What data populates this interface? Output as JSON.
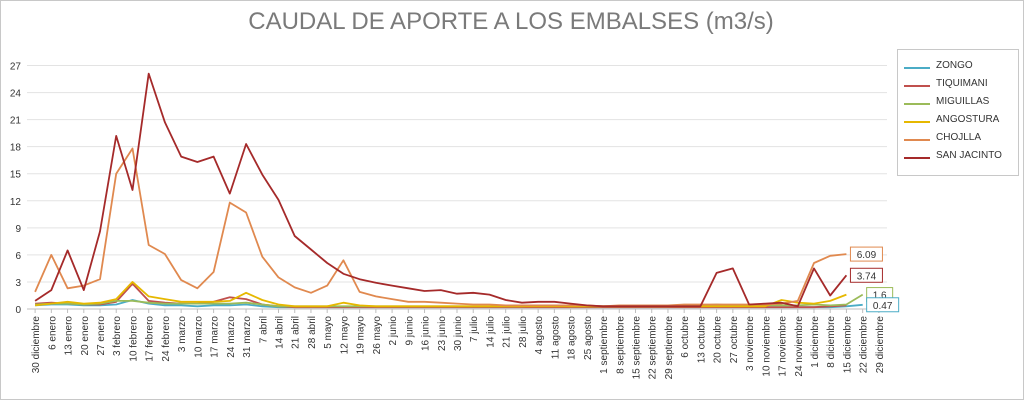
{
  "chart_data": {
    "type": "line",
    "title": "CAUDAL DE APORTE A LOS EMBALSES (m3/s)",
    "xlabel": "",
    "ylabel": "",
    "ylim": [
      0,
      28.5
    ],
    "yticks": [
      0,
      3,
      6,
      9,
      12,
      15,
      18,
      21,
      24,
      27
    ],
    "grid": "horizontal",
    "legend_position": "right",
    "categories": [
      "30 diciembre",
      "6 enero",
      "13 enero",
      "20 enero",
      "27 enero",
      "3 febrero",
      "10 febrero",
      "17 febrero",
      "24 febrero",
      "3 marzo",
      "10 marzo",
      "17 marzo",
      "24 marzo",
      "31 marzo",
      "7 abril",
      "14 abril",
      "21 abril",
      "28 abril",
      "5 mayo",
      "12 mayo",
      "19 mayo",
      "26 mayo",
      "2 junio",
      "9 junio",
      "16 junio",
      "23 junio",
      "30 junio",
      "7 julio",
      "14 julio",
      "21 julio",
      "28 julio",
      "4 agosto",
      "11 agosto",
      "18 agosto",
      "25 agosto",
      "1 septiembre",
      "8 septiembre",
      "15 septiembre",
      "22 septiembre",
      "29 septiembre",
      "6 octubre",
      "13 octubre",
      "20 octubre",
      "27 octubre",
      "3 noviembre",
      "10 noviembre",
      "17 noviembre",
      "24 noviembre",
      "1 diciembre",
      "8 diciembre",
      "15 diciembre",
      "22 diciembre",
      "29 diciembre"
    ],
    "series": [
      {
        "name": "ZONGO",
        "color": "#4bacc6",
        "values": [
          0.4,
          0.5,
          0.5,
          0.4,
          0.4,
          0.5,
          1.0,
          0.6,
          0.4,
          0.4,
          0.3,
          0.4,
          0.4,
          0.5,
          0.3,
          0.2,
          0.2,
          0.2,
          0.2,
          0.2,
          0.2,
          0.2,
          0.2,
          0.2,
          0.2,
          0.2,
          0.2,
          0.2,
          0.2,
          0.2,
          0.2,
          0.2,
          0.2,
          0.2,
          0.2,
          0.2,
          0.2,
          0.2,
          0.2,
          0.2,
          0.2,
          0.2,
          0.2,
          0.2,
          0.2,
          0.2,
          0.2,
          0.2,
          0.2,
          0.2,
          0.3,
          0.47,
          null
        ]
      },
      {
        "name": "TIQUIMANI",
        "color": "#c0504d",
        "values": [
          0.6,
          0.7,
          0.6,
          0.5,
          0.5,
          0.8,
          2.8,
          0.9,
          0.7,
          0.6,
          0.6,
          0.8,
          1.3,
          1.1,
          0.5,
          0.3,
          0.2,
          0.2,
          0.2,
          0.2,
          0.2,
          0.2,
          0.2,
          0.2,
          0.2,
          0.2,
          0.2,
          0.2,
          0.2,
          0.2,
          0.2,
          0.2,
          0.2,
          0.2,
          0.2,
          0.2,
          0.2,
          0.2,
          0.2,
          0.2,
          0.2,
          0.2,
          0.2,
          0.2,
          0.2,
          0.2,
          0.2,
          0.2,
          0.2,
          0.3,
          0.4,
          null,
          null
        ]
      },
      {
        "name": "MIGUILLAS",
        "color": "#9bbb59",
        "values": [
          0.5,
          0.6,
          0.6,
          0.5,
          0.6,
          0.9,
          0.9,
          0.7,
          0.6,
          0.6,
          0.6,
          0.6,
          0.6,
          0.7,
          0.5,
          0.3,
          0.3,
          0.3,
          0.3,
          0.3,
          0.3,
          0.3,
          0.3,
          0.3,
          0.3,
          0.3,
          0.3,
          0.3,
          0.3,
          0.3,
          0.3,
          0.4,
          0.4,
          0.3,
          0.3,
          0.3,
          0.3,
          0.3,
          0.3,
          0.3,
          0.4,
          0.4,
          0.5,
          0.4,
          0.4,
          0.4,
          0.4,
          0.4,
          0.5,
          0.4,
          0.5,
          1.6,
          null
        ]
      },
      {
        "name": "ANGOSTURA",
        "color": "#e6b800",
        "values": [
          0.4,
          0.6,
          0.8,
          0.6,
          0.7,
          1.1,
          3.0,
          1.4,
          1.1,
          0.8,
          0.8,
          0.8,
          0.9,
          1.8,
          1.0,
          0.5,
          0.3,
          0.3,
          0.3,
          0.7,
          0.4,
          0.3,
          0.3,
          0.3,
          0.3,
          0.3,
          0.3,
          0.3,
          0.3,
          0.3,
          0.3,
          0.3,
          0.3,
          0.3,
          0.3,
          0.3,
          0.3,
          0.3,
          0.3,
          0.3,
          0.3,
          0.3,
          0.3,
          0.3,
          0.3,
          0.3,
          1.0,
          0.7,
          0.6,
          0.9,
          1.6,
          null,
          null
        ]
      },
      {
        "name": "CHOJLLA",
        "color": "#e0894f",
        "values": [
          1.9,
          6.0,
          2.3,
          2.6,
          3.3,
          15.0,
          17.8,
          7.1,
          6.1,
          3.2,
          2.3,
          4.1,
          11.8,
          10.7,
          5.8,
          3.5,
          2.4,
          1.8,
          2.6,
          5.4,
          1.9,
          1.4,
          1.1,
          0.8,
          0.8,
          0.7,
          0.6,
          0.5,
          0.5,
          0.4,
          0.4,
          0.4,
          0.4,
          0.4,
          0.4,
          0.3,
          0.4,
          0.4,
          0.4,
          0.4,
          0.5,
          0.5,
          0.5,
          0.5,
          0.5,
          0.5,
          0.6,
          0.9,
          5.1,
          5.9,
          6.09,
          null,
          null
        ]
      },
      {
        "name": "SAN JACINTO",
        "color": "#a52a2a",
        "values": [
          0.9,
          2.1,
          6.5,
          2.1,
          8.6,
          19.2,
          13.2,
          26.1,
          20.7,
          16.9,
          16.3,
          16.9,
          12.8,
          18.3,
          14.9,
          12.1,
          8.1,
          6.6,
          5.1,
          3.9,
          3.3,
          2.9,
          2.6,
          2.3,
          2.0,
          2.1,
          1.7,
          1.8,
          1.6,
          1.0,
          0.7,
          0.8,
          0.8,
          0.6,
          0.4,
          0.3,
          0.3,
          0.3,
          0.3,
          0.3,
          0.3,
          0.3,
          4.0,
          4.5,
          0.5,
          0.6,
          0.7,
          0.3,
          4.5,
          1.5,
          3.74,
          null,
          null
        ]
      }
    ],
    "end_labels": [
      {
        "series": "CHOJLLA",
        "text": "6.09"
      },
      {
        "series": "SAN JACINTO",
        "text": "3.74"
      },
      {
        "series": "MIGUILLAS",
        "text": "1.6"
      },
      {
        "series": "ZONGO",
        "text": "0.47"
      }
    ]
  }
}
